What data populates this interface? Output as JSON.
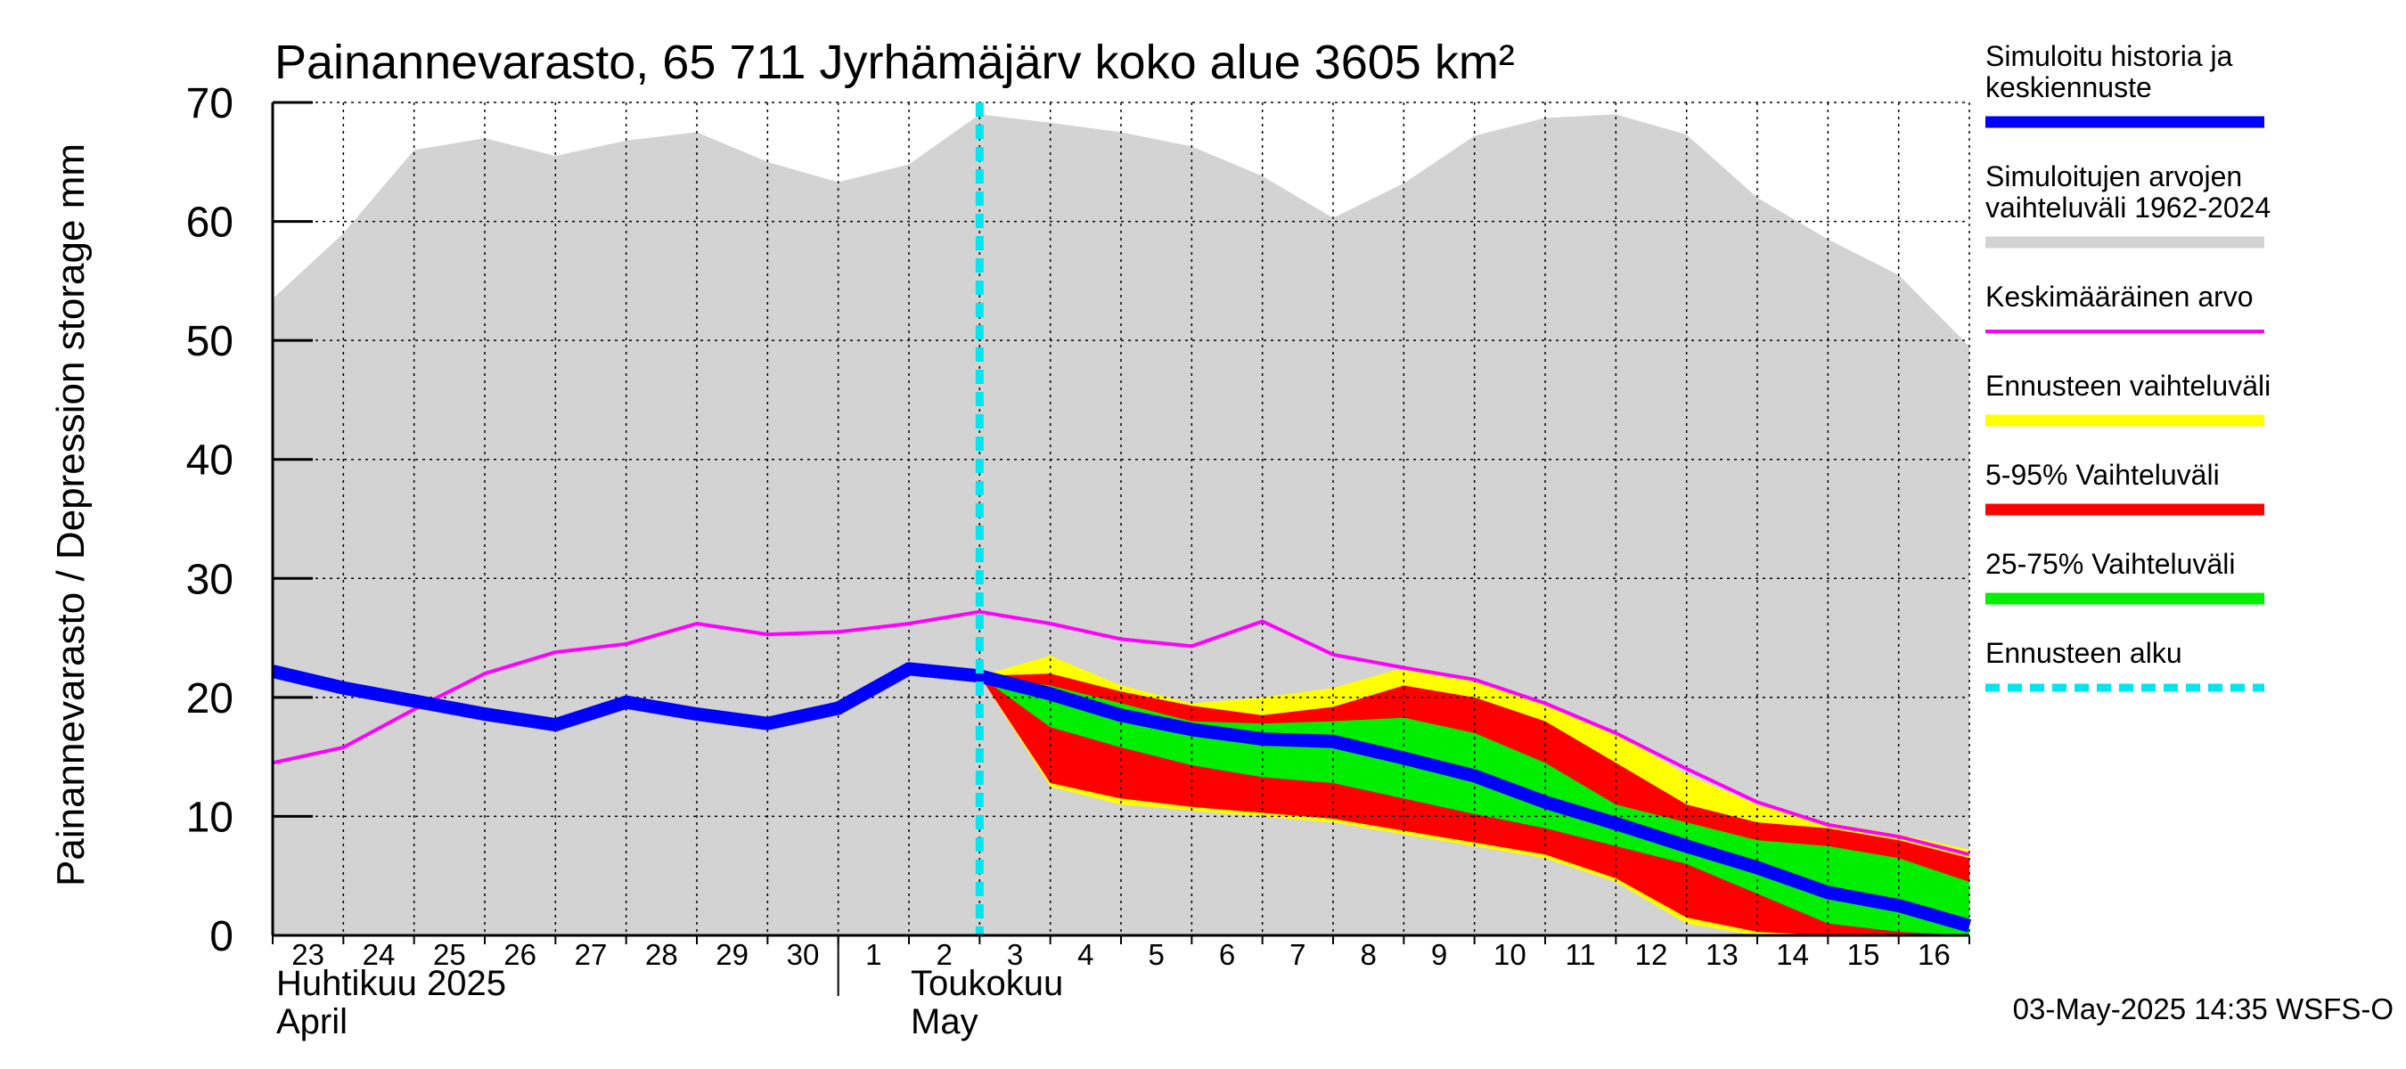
{
  "chart_data": {
    "type": "area",
    "title": "Painannevarasto, 65 711 Jyrhämäjärv koko alue 3605 km²",
    "ylabel": "Painannevarasto / Depression storage    mm",
    "ylim": [
      0,
      70
    ],
    "yticks": [
      "0",
      "10",
      "20",
      "30",
      "40",
      "50",
      "60",
      "70"
    ],
    "grid": true,
    "legend_position": "right",
    "x_labels": [
      "23",
      "24",
      "25",
      "26",
      "27",
      "28",
      "29",
      "30",
      "1",
      "2",
      "3",
      "4",
      "5",
      "6",
      "7",
      "8",
      "9",
      "10",
      "11",
      "12",
      "13",
      "14",
      "15",
      "16"
    ],
    "months": [
      {
        "line1": "Huhtikuu  2025",
        "line2": "April"
      },
      {
        "line1": "Toukokuu",
        "line2": "May"
      }
    ],
    "x": [
      "2025-04-23",
      "2025-04-24",
      "2025-04-25",
      "2025-04-26",
      "2025-04-27",
      "2025-04-28",
      "2025-04-29",
      "2025-04-30",
      "2025-05-01",
      "2025-05-02",
      "2025-05-03",
      "2025-05-04",
      "2025-05-05",
      "2025-05-06",
      "2025-05-07",
      "2025-05-08",
      "2025-05-09",
      "2025-05-10",
      "2025-05-11",
      "2025-05-12",
      "2025-05-13",
      "2025-05-14",
      "2025-05-15",
      "2025-05-16",
      "2025-05-17"
    ],
    "forecast_start": "2025-05-03",
    "series": [
      {
        "name": "Simuloitujen arvojen vaihteluväli 1962-2024",
        "kind": "band",
        "color": "#d3d3d3",
        "upper": [
          53.5,
          59,
          66,
          67,
          65.5,
          66.8,
          67.5,
          65,
          63.3,
          64.8,
          69,
          68.3,
          67.5,
          66.3,
          63.8,
          60.3,
          63.2,
          67.2,
          68.7,
          69,
          67.3,
          62,
          58.5,
          55.5,
          49.5
        ],
        "lower": [
          0,
          0,
          0,
          0,
          0,
          0,
          0,
          0,
          0,
          0,
          0,
          0,
          0,
          0,
          0,
          0,
          0,
          0,
          0,
          0,
          0,
          0,
          0,
          0,
          0
        ]
      },
      {
        "name": "Ennusteen vaihteluväli",
        "kind": "band",
        "color": "#ffff00",
        "start_index": 10,
        "upper": [
          21.8,
          23.5,
          21,
          19.5,
          20,
          20.8,
          22.5,
          21.5,
          19.5,
          17,
          13.5,
          11,
          9.5,
          8.5,
          7.2
        ],
        "lower": [
          21.8,
          12.5,
          11,
          10.5,
          10,
          9.5,
          8.5,
          7.5,
          6.5,
          4.5,
          1,
          0,
          0,
          0,
          0
        ]
      },
      {
        "name": "5-95% Vaihteluväli",
        "kind": "band",
        "color": "#ff0000",
        "start_index": 10,
        "upper": [
          21.8,
          22,
          20.5,
          19.3,
          18.5,
          19.2,
          21,
          20,
          18,
          14.5,
          11,
          9.5,
          9,
          8,
          6.5
        ],
        "lower": [
          21.8,
          12.8,
          11.5,
          10.8,
          10.3,
          9.8,
          8.8,
          7.8,
          6.8,
          4.8,
          1.5,
          0.3,
          0,
          0,
          0
        ]
      },
      {
        "name": "25-75% Vaihteluväli",
        "kind": "band",
        "color": "#00ee00",
        "start_index": 10,
        "upper": [
          21.8,
          21,
          19.5,
          18,
          17.8,
          18,
          18.3,
          17,
          14.5,
          11,
          9.5,
          8,
          7.5,
          6.5,
          4.5
        ],
        "lower": [
          21.8,
          17.5,
          15.8,
          14.3,
          13.3,
          12.8,
          11.5,
          10.2,
          9,
          7.5,
          6,
          3.5,
          1,
          0.3,
          0
        ]
      },
      {
        "name": "Keskimääräinen arvo",
        "kind": "line",
        "color": "#ff00ff",
        "values": [
          14.5,
          15.8,
          19,
          22,
          23.8,
          24.5,
          26.2,
          25.3,
          25.5,
          26.2,
          27.2,
          26.2,
          24.9,
          24.3,
          26.4,
          23.6,
          22.5,
          21.5,
          19.5,
          17,
          14,
          11.2,
          9.3,
          8.3,
          6.8
        ]
      },
      {
        "name": "Simuloitu historia ja keskiennuste",
        "kind": "line",
        "color": "#0000ff",
        "values": [
          22.2,
          20.8,
          19.7,
          18.6,
          17.7,
          19.6,
          18.6,
          17.8,
          19.1,
          22.4,
          21.8,
          20.3,
          18.5,
          17.3,
          16.5,
          16.3,
          14.9,
          13.4,
          11.2,
          9.4,
          7.5,
          5.7,
          3.6,
          2.5,
          0.8
        ]
      }
    ],
    "legend": [
      {
        "label": "Simuloitu historia ja keskiennuste",
        "color": "#0000ff",
        "style": "thick"
      },
      {
        "label": "Simuloitujen arvojen vaihteluväli 1962-2024",
        "color": "#d3d3d3",
        "style": "thick"
      },
      {
        "label": "Keskimääräinen arvo",
        "color": "#ff00ff",
        "style": "thin"
      },
      {
        "label": "Ennusteen vaihteluväli",
        "color": "#ffff00",
        "style": "thick"
      },
      {
        "label": "5-95% Vaihteluväli",
        "color": "#ff0000",
        "style": "thick"
      },
      {
        "label": "25-75% Vaihteluväli",
        "color": "#00ee00",
        "style": "thick"
      },
      {
        "label": "Ennusteen alku",
        "color": "#00e5ee",
        "style": "dashed"
      }
    ],
    "footer": "03-May-2025 14:35 WSFS-O"
  }
}
